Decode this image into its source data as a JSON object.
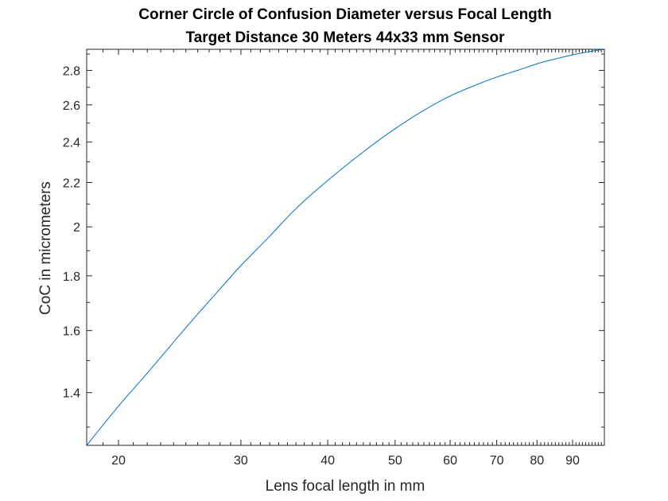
{
  "chart_data": {
    "type": "line",
    "title": "Corner Circle of Confusion Diameter versus Focal Length",
    "subtitle": "Target Distance 30 Meters 44x33 mm Sensor",
    "xlabel": "Lens focal length in mm",
    "ylabel": "CoC in micrometers",
    "xscale": "log",
    "yscale": "log",
    "xlim": [
      18,
      100
    ],
    "ylim": [
      1.25,
      2.93
    ],
    "xticks": [
      20,
      30,
      40,
      50,
      60,
      70,
      80,
      90
    ],
    "xtick_labels": [
      "20",
      "30",
      "40",
      "50",
      "60",
      "70",
      "80",
      "90"
    ],
    "yticks": [
      1.4,
      1.6,
      1.8,
      2,
      2.2,
      2.4,
      2.6,
      2.8
    ],
    "ytick_labels": [
      "1.4",
      "1.6",
      "1.8",
      "2",
      "2.2",
      "2.4",
      "2.6",
      "2.8"
    ],
    "grid": false,
    "line_color": "#0072bd",
    "series": [
      {
        "x": [
          18,
          20,
          22,
          25,
          28,
          30,
          33,
          36,
          40,
          45,
          50,
          55,
          60,
          65,
          70,
          75,
          80,
          85,
          90,
          95,
          100
        ],
        "y": [
          1.25,
          1.36,
          1.46,
          1.61,
          1.75,
          1.84,
          1.96,
          2.08,
          2.21,
          2.35,
          2.47,
          2.57,
          2.65,
          2.71,
          2.76,
          2.8,
          2.84,
          2.87,
          2.895,
          2.915,
          2.93
        ]
      }
    ]
  }
}
